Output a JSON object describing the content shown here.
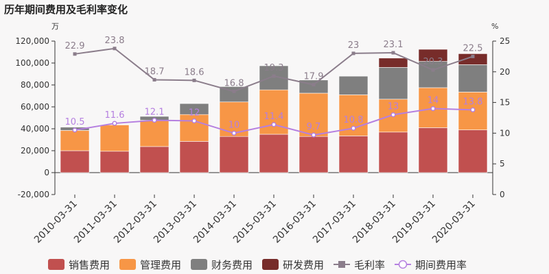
{
  "chart_data": {
    "type": "bar",
    "title": "历年期间费用及毛利率变化",
    "left_unit": "万",
    "right_unit": "%",
    "categories": [
      "2010-03-31",
      "2011-03-31",
      "2012-03-31",
      "2013-03-31",
      "2014-03-31",
      "2015-03-31",
      "2016-03-31",
      "2017-03-31",
      "2018-03-31",
      "2019-03-31",
      "2020-03-31"
    ],
    "left_axis": {
      "min": -20000,
      "max": 120000,
      "step": 20000,
      "tick_labels": [
        "-20,000",
        "0",
        "20,000",
        "40,000",
        "60,000",
        "80,000",
        "100,000",
        "120,000"
      ]
    },
    "right_axis": {
      "min": 0,
      "max": 25,
      "step": 5,
      "tick_labels": [
        "0",
        "5",
        "10",
        "15",
        "20",
        "25"
      ]
    },
    "bar_series": [
      {
        "name": "销售费用",
        "color": "#c1504f",
        "values": [
          20000,
          19500,
          23800,
          28500,
          33000,
          35000,
          33000,
          33500,
          37000,
          41000,
          39000
        ]
      },
      {
        "name": "管理费用",
        "color": "#f79646",
        "values": [
          18500,
          24000,
          24000,
          24500,
          31500,
          40500,
          39500,
          37500,
          30000,
          36500,
          34500
        ]
      },
      {
        "name": "财务费用",
        "color": "#7f7f7f",
        "values": [
          3000,
          0,
          3500,
          10000,
          14000,
          22000,
          12000,
          17000,
          29000,
          24000,
          25000
        ]
      },
      {
        "name": "研发费用",
        "color": "#772c2a",
        "values": [
          0,
          0,
          0,
          0,
          0,
          0,
          0,
          0,
          8500,
          11000,
          10000
        ]
      }
    ],
    "line_series": [
      {
        "name": "毛利率",
        "color": "#8b7d8b",
        "values": [
          22.9,
          23.8,
          18.7,
          18.6,
          16.8,
          19.3,
          17.9,
          23,
          23.1,
          20.3,
          22.5
        ],
        "labels": [
          "22.9",
          "23.8",
          "18.7",
          "18.6",
          "16.8",
          "19.3",
          "17.9",
          "23",
          "23.1",
          "20.3",
          "22.5"
        ]
      },
      {
        "name": "期间费用率",
        "color": "#b57fe0",
        "values": [
          10.5,
          11.6,
          12.1,
          12,
          10,
          11.4,
          9.7,
          10.8,
          13,
          14,
          13.8
        ],
        "labels": [
          "10.5",
          "11.6",
          "12.1",
          "12",
          "10",
          "11.4",
          "9.7",
          "10.8",
          "13",
          "14",
          "13.8"
        ]
      }
    ],
    "legend_position": "bottom",
    "grid": false
  }
}
